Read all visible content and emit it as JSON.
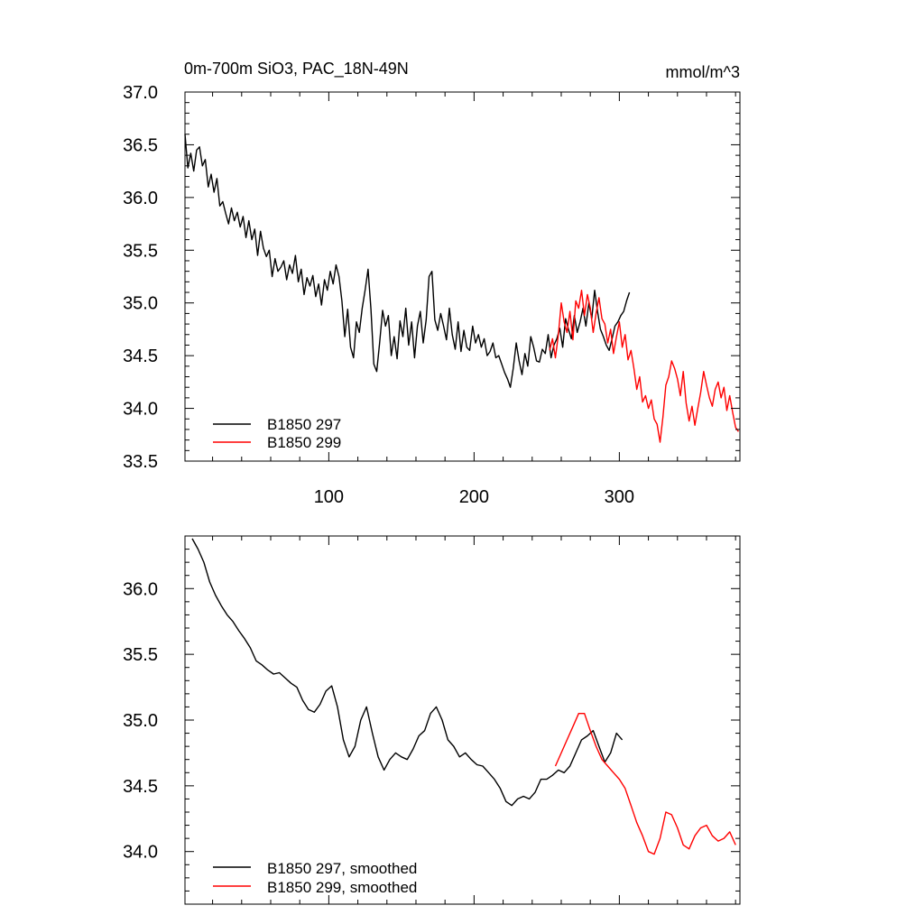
{
  "chart_data": [
    {
      "type": "line",
      "title": "0m-700m SiO3, PAC_18N-49N",
      "units": "mmol/m^3",
      "xlabel": "",
      "ylabel": "",
      "xlim": [
        1,
        383
      ],
      "ylim": [
        33.5,
        37.0
      ],
      "xticks": [
        100,
        200,
        300
      ],
      "xtick_labels": [
        "100",
        "200",
        "300"
      ],
      "yticks": [
        33.5,
        34.0,
        34.5,
        35.0,
        35.5,
        36.0,
        36.5,
        37.0
      ],
      "ytick_labels": [
        "33.5",
        "34.0",
        "34.5",
        "35.0",
        "35.5",
        "36.0",
        "36.5",
        "37.0"
      ],
      "legend_position": "bottom-left",
      "series": [
        {
          "name": "B1850 297",
          "color": "#000000",
          "x": [
            1,
            3,
            5,
            7,
            9,
            11,
            13,
            15,
            17,
            19,
            21,
            23,
            25,
            27,
            29,
            31,
            33,
            35,
            37,
            39,
            41,
            43,
            45,
            47,
            49,
            51,
            53,
            55,
            57,
            59,
            61,
            63,
            65,
            67,
            69,
            71,
            73,
            75,
            77,
            79,
            81,
            83,
            85,
            87,
            89,
            91,
            93,
            95,
            97,
            99,
            101,
            103,
            105,
            107,
            109,
            111,
            113,
            115,
            117,
            119,
            121,
            123,
            125,
            127,
            129,
            131,
            133,
            135,
            137,
            139,
            141,
            143,
            145,
            147,
            149,
            151,
            153,
            155,
            157,
            159,
            161,
            163,
            165,
            167,
            169,
            171,
            173,
            175,
            177,
            179,
            181,
            183,
            185,
            187,
            189,
            191,
            193,
            195,
            197,
            199,
            201,
            203,
            205,
            207,
            209,
            211,
            213,
            215,
            217,
            219,
            221,
            223,
            225,
            227,
            229,
            231,
            233,
            235,
            237,
            239,
            241,
            243,
            245,
            247,
            249,
            251,
            253,
            255,
            257,
            259,
            261,
            263,
            265,
            267,
            269,
            271,
            273,
            275,
            277,
            279,
            281,
            283,
            285,
            287,
            289,
            291,
            293,
            295,
            297,
            299,
            301,
            303,
            305,
            307
          ],
          "values": [
            36.6,
            36.28,
            36.42,
            36.25,
            36.45,
            36.48,
            36.3,
            36.36,
            36.1,
            36.22,
            36.05,
            36.18,
            35.92,
            35.96,
            35.85,
            35.75,
            35.9,
            35.78,
            35.86,
            35.72,
            35.82,
            35.62,
            35.78,
            35.6,
            35.7,
            35.45,
            35.68,
            35.52,
            35.44,
            35.5,
            35.25,
            35.42,
            35.3,
            35.34,
            35.4,
            35.22,
            35.36,
            35.28,
            35.45,
            35.2,
            35.32,
            35.08,
            35.24,
            35.16,
            35.26,
            35.06,
            35.18,
            34.98,
            35.22,
            35.12,
            35.3,
            35.18,
            35.36,
            35.25,
            35.02,
            34.68,
            34.94,
            34.58,
            34.48,
            34.82,
            34.72,
            34.95,
            35.12,
            35.32,
            34.94,
            34.42,
            34.35,
            34.62,
            34.93,
            34.78,
            34.88,
            34.5,
            34.68,
            34.47,
            34.83,
            34.68,
            34.95,
            34.6,
            34.82,
            34.48,
            34.78,
            34.92,
            34.62,
            34.84,
            35.25,
            35.3,
            34.84,
            34.74,
            34.9,
            34.78,
            34.65,
            34.95,
            34.7,
            34.56,
            34.82,
            34.54,
            34.74,
            34.58,
            34.55,
            34.78,
            34.62,
            34.7,
            34.58,
            34.66,
            34.5,
            34.54,
            34.62,
            34.48,
            34.5,
            34.42,
            34.34,
            34.28,
            34.2,
            34.38,
            34.62,
            34.45,
            34.32,
            34.52,
            34.4,
            34.68,
            34.58,
            34.45,
            34.44,
            34.56,
            34.52,
            34.7,
            34.48,
            34.6,
            34.66,
            34.76,
            34.58,
            34.85,
            34.75,
            34.66,
            34.88,
            34.72,
            34.82,
            34.95,
            34.78,
            35.0,
            34.85,
            35.12,
            34.92,
            34.75,
            34.68,
            34.6,
            34.55,
            34.66,
            34.78,
            34.82,
            34.88,
            34.92,
            35.02,
            35.1
          ],
          "note": "approx"
        },
        {
          "name": "B1850 299",
          "color": "#ff0000",
          "x": [
            252,
            254,
            256,
            258,
            260,
            262,
            264,
            266,
            268,
            270,
            272,
            274,
            276,
            278,
            280,
            282,
            284,
            286,
            288,
            290,
            292,
            294,
            296,
            298,
            300,
            302,
            304,
            306,
            308,
            310,
            312,
            314,
            316,
            318,
            320,
            322,
            324,
            326,
            328,
            330,
            332,
            334,
            336,
            338,
            340,
            342,
            344,
            346,
            348,
            350,
            352,
            354,
            356,
            358,
            360,
            362,
            364,
            366,
            368,
            370,
            372,
            374,
            376,
            378,
            380,
            382
          ],
          "values": [
            34.55,
            34.66,
            34.48,
            34.7,
            35.0,
            34.82,
            34.72,
            34.92,
            34.65,
            35.02,
            34.95,
            35.12,
            34.88,
            35.08,
            34.95,
            34.72,
            34.9,
            35.05,
            34.85,
            34.8,
            34.62,
            34.75,
            34.52,
            34.68,
            34.82,
            34.58,
            34.7,
            34.46,
            34.55,
            34.38,
            34.18,
            34.3,
            34.06,
            34.12,
            34.0,
            34.08,
            33.9,
            33.85,
            33.68,
            33.92,
            34.22,
            34.3,
            34.45,
            34.38,
            34.28,
            34.12,
            34.35,
            34.05,
            33.88,
            34.02,
            33.84,
            34.0,
            34.15,
            34.35,
            34.22,
            34.1,
            34.02,
            34.18,
            34.25,
            34.1,
            34.2,
            33.98,
            34.12,
            33.96,
            33.82,
            33.78
          ],
          "note": "approx"
        }
      ],
      "legend": [
        "B1850 297",
        "B1850 299"
      ]
    },
    {
      "type": "line",
      "title": "",
      "units": "",
      "xlim": [
        1,
        383
      ],
      "ylim": [
        33.6,
        36.4
      ],
      "xticks": [
        100,
        200,
        300
      ],
      "xtick_labels": [],
      "yticks": [
        34.0,
        34.5,
        35.0,
        35.5,
        36.0
      ],
      "ytick_labels": [
        "34.0",
        "34.5",
        "35.0",
        "35.5",
        "36.0"
      ],
      "legend_position": "bottom-left",
      "series": [
        {
          "name": "B1850 297, smoothed",
          "color": "#000000",
          "x": [
            6,
            10,
            14,
            18,
            22,
            26,
            30,
            34,
            38,
            42,
            46,
            50,
            54,
            58,
            62,
            66,
            70,
            74,
            78,
            82,
            86,
            90,
            94,
            98,
            102,
            106,
            110,
            114,
            118,
            122,
            126,
            130,
            134,
            138,
            142,
            146,
            150,
            154,
            158,
            162,
            166,
            170,
            174,
            178,
            182,
            186,
            190,
            194,
            198,
            202,
            206,
            210,
            214,
            218,
            222,
            226,
            230,
            234,
            238,
            242,
            246,
            250,
            254,
            258,
            262,
            266,
            270,
            274,
            278,
            282,
            286,
            290,
            294,
            298,
            302
          ],
          "values": [
            36.38,
            36.3,
            36.2,
            36.05,
            35.95,
            35.87,
            35.8,
            35.75,
            35.68,
            35.62,
            35.55,
            35.45,
            35.42,
            35.38,
            35.35,
            35.36,
            35.32,
            35.28,
            35.25,
            35.15,
            35.08,
            35.06,
            35.12,
            35.22,
            35.26,
            35.1,
            34.85,
            34.72,
            34.8,
            35.0,
            35.1,
            34.9,
            34.72,
            34.62,
            34.7,
            34.75,
            34.72,
            34.7,
            34.78,
            34.88,
            34.92,
            35.05,
            35.1,
            35.0,
            34.85,
            34.8,
            34.72,
            34.75,
            34.7,
            34.66,
            34.65,
            34.6,
            34.55,
            34.48,
            34.38,
            34.35,
            34.4,
            34.42,
            34.4,
            34.45,
            34.55,
            34.55,
            34.58,
            34.62,
            34.6,
            34.65,
            34.75,
            34.85,
            34.88,
            34.92,
            34.8,
            34.68,
            34.75,
            34.9,
            34.85
          ],
          "note": "approx"
        },
        {
          "name": "B1850 299, smoothed",
          "color": "#ff0000",
          "x": [
            256,
            260,
            264,
            268,
            272,
            276,
            280,
            284,
            288,
            292,
            296,
            300,
            304,
            308,
            312,
            316,
            320,
            324,
            328,
            332,
            336,
            340,
            344,
            348,
            352,
            356,
            360,
            364,
            368,
            372,
            376,
            380
          ],
          "values": [
            34.65,
            34.75,
            34.85,
            34.95,
            35.05,
            35.05,
            34.92,
            34.8,
            34.7,
            34.65,
            34.6,
            34.55,
            34.48,
            34.35,
            34.22,
            34.12,
            34.0,
            33.98,
            34.1,
            34.3,
            34.28,
            34.18,
            34.05,
            34.02,
            34.12,
            34.18,
            34.2,
            34.12,
            34.08,
            34.1,
            34.15,
            34.05
          ],
          "note": "approx"
        }
      ],
      "legend": [
        "B1850 297, smoothed",
        "B1850 299, smoothed"
      ]
    }
  ]
}
